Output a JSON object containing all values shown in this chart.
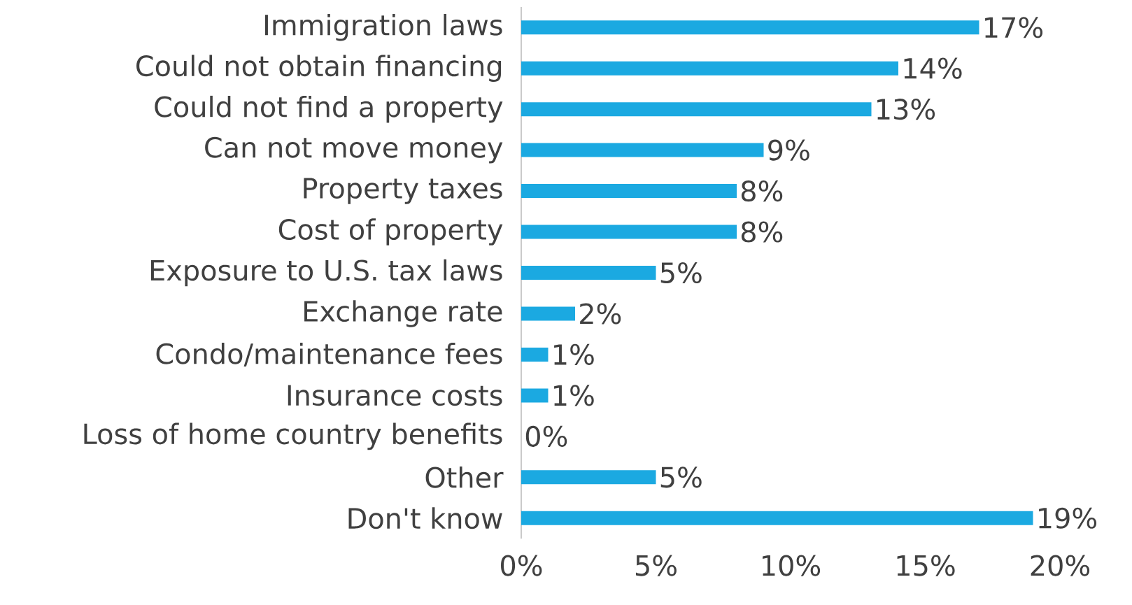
{
  "chart_data": {
    "type": "bar",
    "orientation": "horizontal",
    "categories": [
      "Immigration laws",
      "Could not obtain financing",
      "Could not find a property",
      "Can not move money",
      "Property taxes",
      "Cost of property",
      "Exposure to U.S. tax laws",
      "Exchange rate",
      "Condo/maintenance fees",
      "Insurance costs",
      "Loss of home country benefits",
      "Other",
      "Don't know"
    ],
    "values": [
      17,
      14,
      13,
      9,
      8,
      8,
      5,
      2,
      1,
      1,
      0,
      5,
      19
    ],
    "value_labels": [
      "17%",
      "14%",
      "13%",
      "9%",
      "8%",
      "8%",
      "5%",
      "2%",
      "1%",
      "1%",
      "0%",
      "5%",
      "19%"
    ],
    "color": "#1ba9e1",
    "xlim": [
      0,
      20
    ],
    "xticks": [
      {
        "value": 0,
        "label": "0%"
      },
      {
        "value": 5,
        "label": "5%"
      },
      {
        "value": 10,
        "label": "10%"
      },
      {
        "value": 15,
        "label": "15%"
      },
      {
        "value": 20,
        "label": "20%"
      }
    ],
    "grid": false
  }
}
